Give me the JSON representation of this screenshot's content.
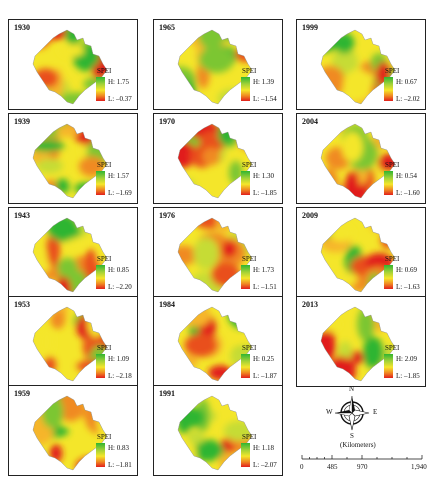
{
  "legend_title": "SPEI",
  "panels": [
    {
      "year": "1930",
      "high": "H: 1.75",
      "low": "L: –0.37"
    },
    {
      "year": "1965",
      "high": "H: 1.39",
      "low": "L: –1.54"
    },
    {
      "year": "1999",
      "high": "H: 0.67",
      "low": "L: –2.02"
    },
    {
      "year": "1939",
      "high": "H: 1.57",
      "low": "L: –1.69"
    },
    {
      "year": "1970",
      "high": "H: 1.30",
      "low": "L: –1.85"
    },
    {
      "year": "2004",
      "high": "H: 0.54",
      "low": "L: –1.60"
    },
    {
      "year": "1943",
      "high": "H: 0.85",
      "low": "L: –2.20"
    },
    {
      "year": "1976",
      "high": "H: 1.73",
      "low": "L: –1.51"
    },
    {
      "year": "2009",
      "high": "H: 0.69",
      "low": "L: –1.63"
    },
    {
      "year": "1953",
      "high": "H: 1.09",
      "low": "L: –2.18"
    },
    {
      "year": "1984",
      "high": "H: 0.25",
      "low": "L: –1.87"
    },
    {
      "year": "2013",
      "high": "H: 2.09",
      "low": "L: –1.85"
    },
    {
      "year": "1959",
      "high": "H: 0.83",
      "low": "L: –1.81"
    },
    {
      "year": "1991",
      "high": "H: 1.18",
      "low": "L: –2.07"
    }
  ],
  "compass": {
    "n": "N",
    "s": "S",
    "e": "E",
    "w": "W"
  },
  "scale": {
    "unit": "(Kilometers)",
    "ticks": [
      "0",
      "485",
      "970",
      "1,940"
    ]
  },
  "colors": {
    "wet": "#2fb532",
    "dry": "#e11f1c",
    "mid": "#f4e62a"
  }
}
